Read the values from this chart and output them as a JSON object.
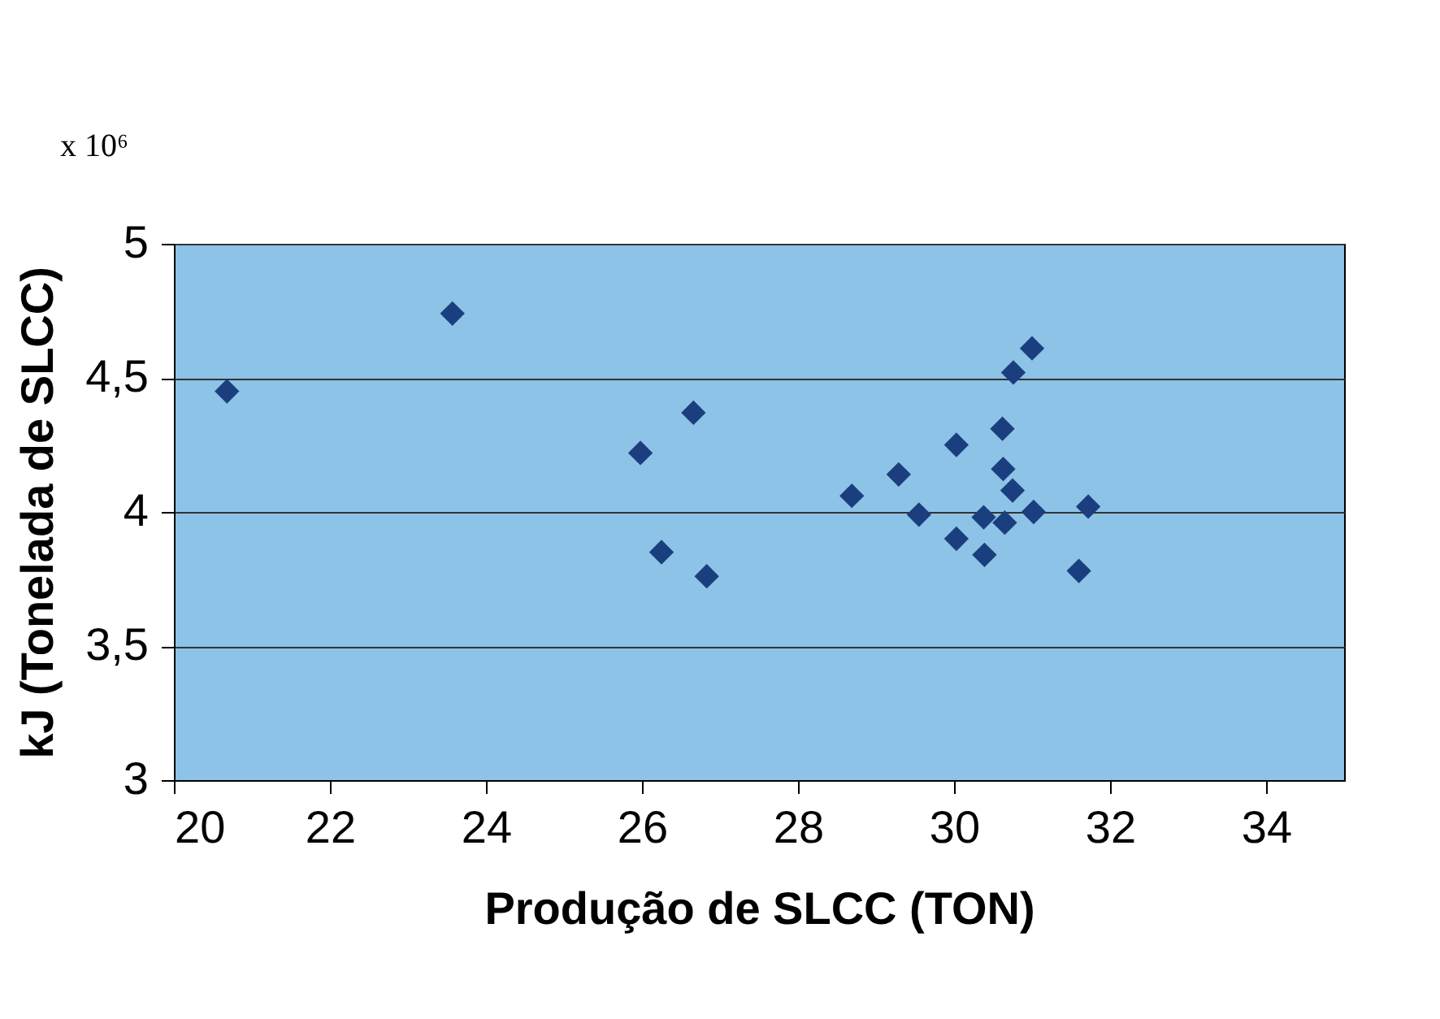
{
  "chart_data": {
    "type": "scatter",
    "xlabel": "Produção de SLCC (TON)",
    "ylabel": "kJ (Tonelada de SLCC)",
    "annotations": [
      "x 10⁶"
    ],
    "x": [
      20.68,
      23.57,
      25.98,
      26.66,
      26.25,
      26.83,
      28.69,
      29.29,
      29.55,
      30.03,
      30.03,
      30.38,
      30.39,
      30.62,
      30.76,
      31.0,
      30.63,
      30.75,
      30.65,
      31.02,
      31.72,
      31.6
    ],
    "series": [
      {
        "color": "#1b3f7e",
        "values": [
          4.45,
          4.74,
          4.22,
          4.37,
          3.85,
          3.76,
          4.06,
          4.14,
          3.99,
          4.25,
          3.9,
          3.98,
          3.84,
          4.31,
          4.52,
          4.61,
          4.16,
          4.08,
          3.96,
          4.0,
          4.02,
          3.78
        ]
      }
    ],
    "xlim": [
      20,
      35
    ],
    "xticks": [
      20,
      22,
      24,
      26,
      28,
      30,
      32,
      34
    ],
    "ylim": [
      3,
      5
    ],
    "yticks": [
      3,
      {
        "value": 3.5,
        "label": "3,5"
      },
      4,
      {
        "value": 4.5,
        "label": "4,5"
      },
      5
    ],
    "grid": "y",
    "marker": "diamond",
    "legend": false
  }
}
